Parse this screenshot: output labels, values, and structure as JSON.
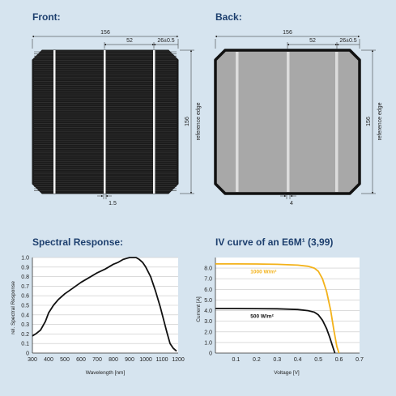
{
  "front": {
    "title": "Front:",
    "dim_width": "156",
    "dim_busbar_spacing": "52",
    "dim_edge": "26±0.5",
    "dim_height": "156",
    "reference_edge": "reference edge",
    "dim_busbar_width": "1.5",
    "colors": {
      "cell": "#1b1b1b",
      "busbar": "#f2f2f2"
    }
  },
  "back": {
    "title": "Back:",
    "dim_width": "156",
    "dim_busbar_spacing": "52",
    "dim_edge": "26±0.5",
    "dim_height": "156",
    "reference_edge": "reference edge",
    "dim_busbar_width": "4",
    "colors": {
      "cell": "#a8a8a8",
      "busbar": "#dcdcdc"
    }
  },
  "spectral": {
    "title": "Spectral Response:",
    "chart_data": {
      "type": "line",
      "xlabel": "Wavelength [nm]",
      "ylabel": "rel. Spectral Response",
      "xlim": [
        300,
        1200
      ],
      "ylim": [
        0,
        1.0
      ],
      "x_ticks": [
        300,
        400,
        500,
        600,
        700,
        800,
        900,
        1000,
        1100,
        1200
      ],
      "y_ticks": [
        0,
        0.1,
        0.2,
        0.3,
        0.4,
        0.5,
        0.6,
        0.7,
        0.8,
        0.9,
        1.0
      ],
      "x_tick_labels": [
        "300",
        "400",
        "500",
        "600",
        "700",
        "800",
        "900",
        "1000",
        "1100",
        "1200"
      ],
      "y_tick_labels": [
        "0",
        "0.1",
        "0.2",
        "0.3",
        "0.4",
        "0.5",
        "0.6",
        "0.7",
        "0.8",
        "0.9",
        "1.0"
      ],
      "series": [
        {
          "color": "#111111",
          "x": [
            300,
            320,
            350,
            380,
            400,
            430,
            460,
            500,
            550,
            600,
            650,
            700,
            750,
            800,
            830,
            860,
            880,
            900,
            920,
            940,
            960,
            980,
            1000,
            1030,
            1060,
            1090,
            1110,
            1130,
            1150,
            1170,
            1190
          ],
          "y": [
            0.18,
            0.2,
            0.24,
            0.33,
            0.42,
            0.5,
            0.56,
            0.62,
            0.68,
            0.74,
            0.79,
            0.84,
            0.88,
            0.93,
            0.95,
            0.98,
            0.99,
            1.0,
            1.0,
            1.0,
            0.98,
            0.95,
            0.9,
            0.8,
            0.65,
            0.48,
            0.35,
            0.22,
            0.1,
            0.05,
            0.02
          ]
        }
      ]
    }
  },
  "iv": {
    "title": "IV curve of an E6M¹ (3,99)",
    "chart_data": {
      "type": "line",
      "xlabel": "Voltage [V]",
      "ylabel": "Current [A]",
      "xlim": [
        0,
        0.7
      ],
      "ylim": [
        0,
        9.0
      ],
      "x_ticks": [
        0.1,
        0.2,
        0.3,
        0.4,
        0.5,
        0.6,
        0.7
      ],
      "y_ticks": [
        0,
        1.0,
        2.0,
        3.0,
        4.0,
        5.0,
        6.0,
        7.0,
        8.0
      ],
      "x_tick_labels": [
        "0.1",
        "0.2",
        "0.3",
        "0.4",
        "0.5",
        "0.6",
        "0.7"
      ],
      "y_tick_labels": [
        "0",
        "1.0",
        "2.0",
        "3.0",
        "4.0",
        "5.0",
        "6.0",
        "7.0",
        "8.0"
      ],
      "series": [
        {
          "name": "1000 W/m²",
          "color": "#f3b21a",
          "x": [
            0,
            0.1,
            0.2,
            0.3,
            0.4,
            0.45,
            0.48,
            0.5,
            0.52,
            0.54,
            0.56,
            0.575,
            0.59,
            0.6
          ],
          "y": [
            8.4,
            8.4,
            8.39,
            8.36,
            8.28,
            8.18,
            8.0,
            7.7,
            7.0,
            5.8,
            4.0,
            2.2,
            0.6,
            0
          ]
        },
        {
          "name": "500 W/m²",
          "color": "#111111",
          "x": [
            0,
            0.1,
            0.2,
            0.3,
            0.4,
            0.45,
            0.48,
            0.5,
            0.52,
            0.54,
            0.555,
            0.57,
            0.58
          ],
          "y": [
            4.2,
            4.2,
            4.19,
            4.17,
            4.1,
            4.0,
            3.85,
            3.6,
            3.1,
            2.3,
            1.5,
            0.6,
            0
          ]
        }
      ]
    }
  }
}
